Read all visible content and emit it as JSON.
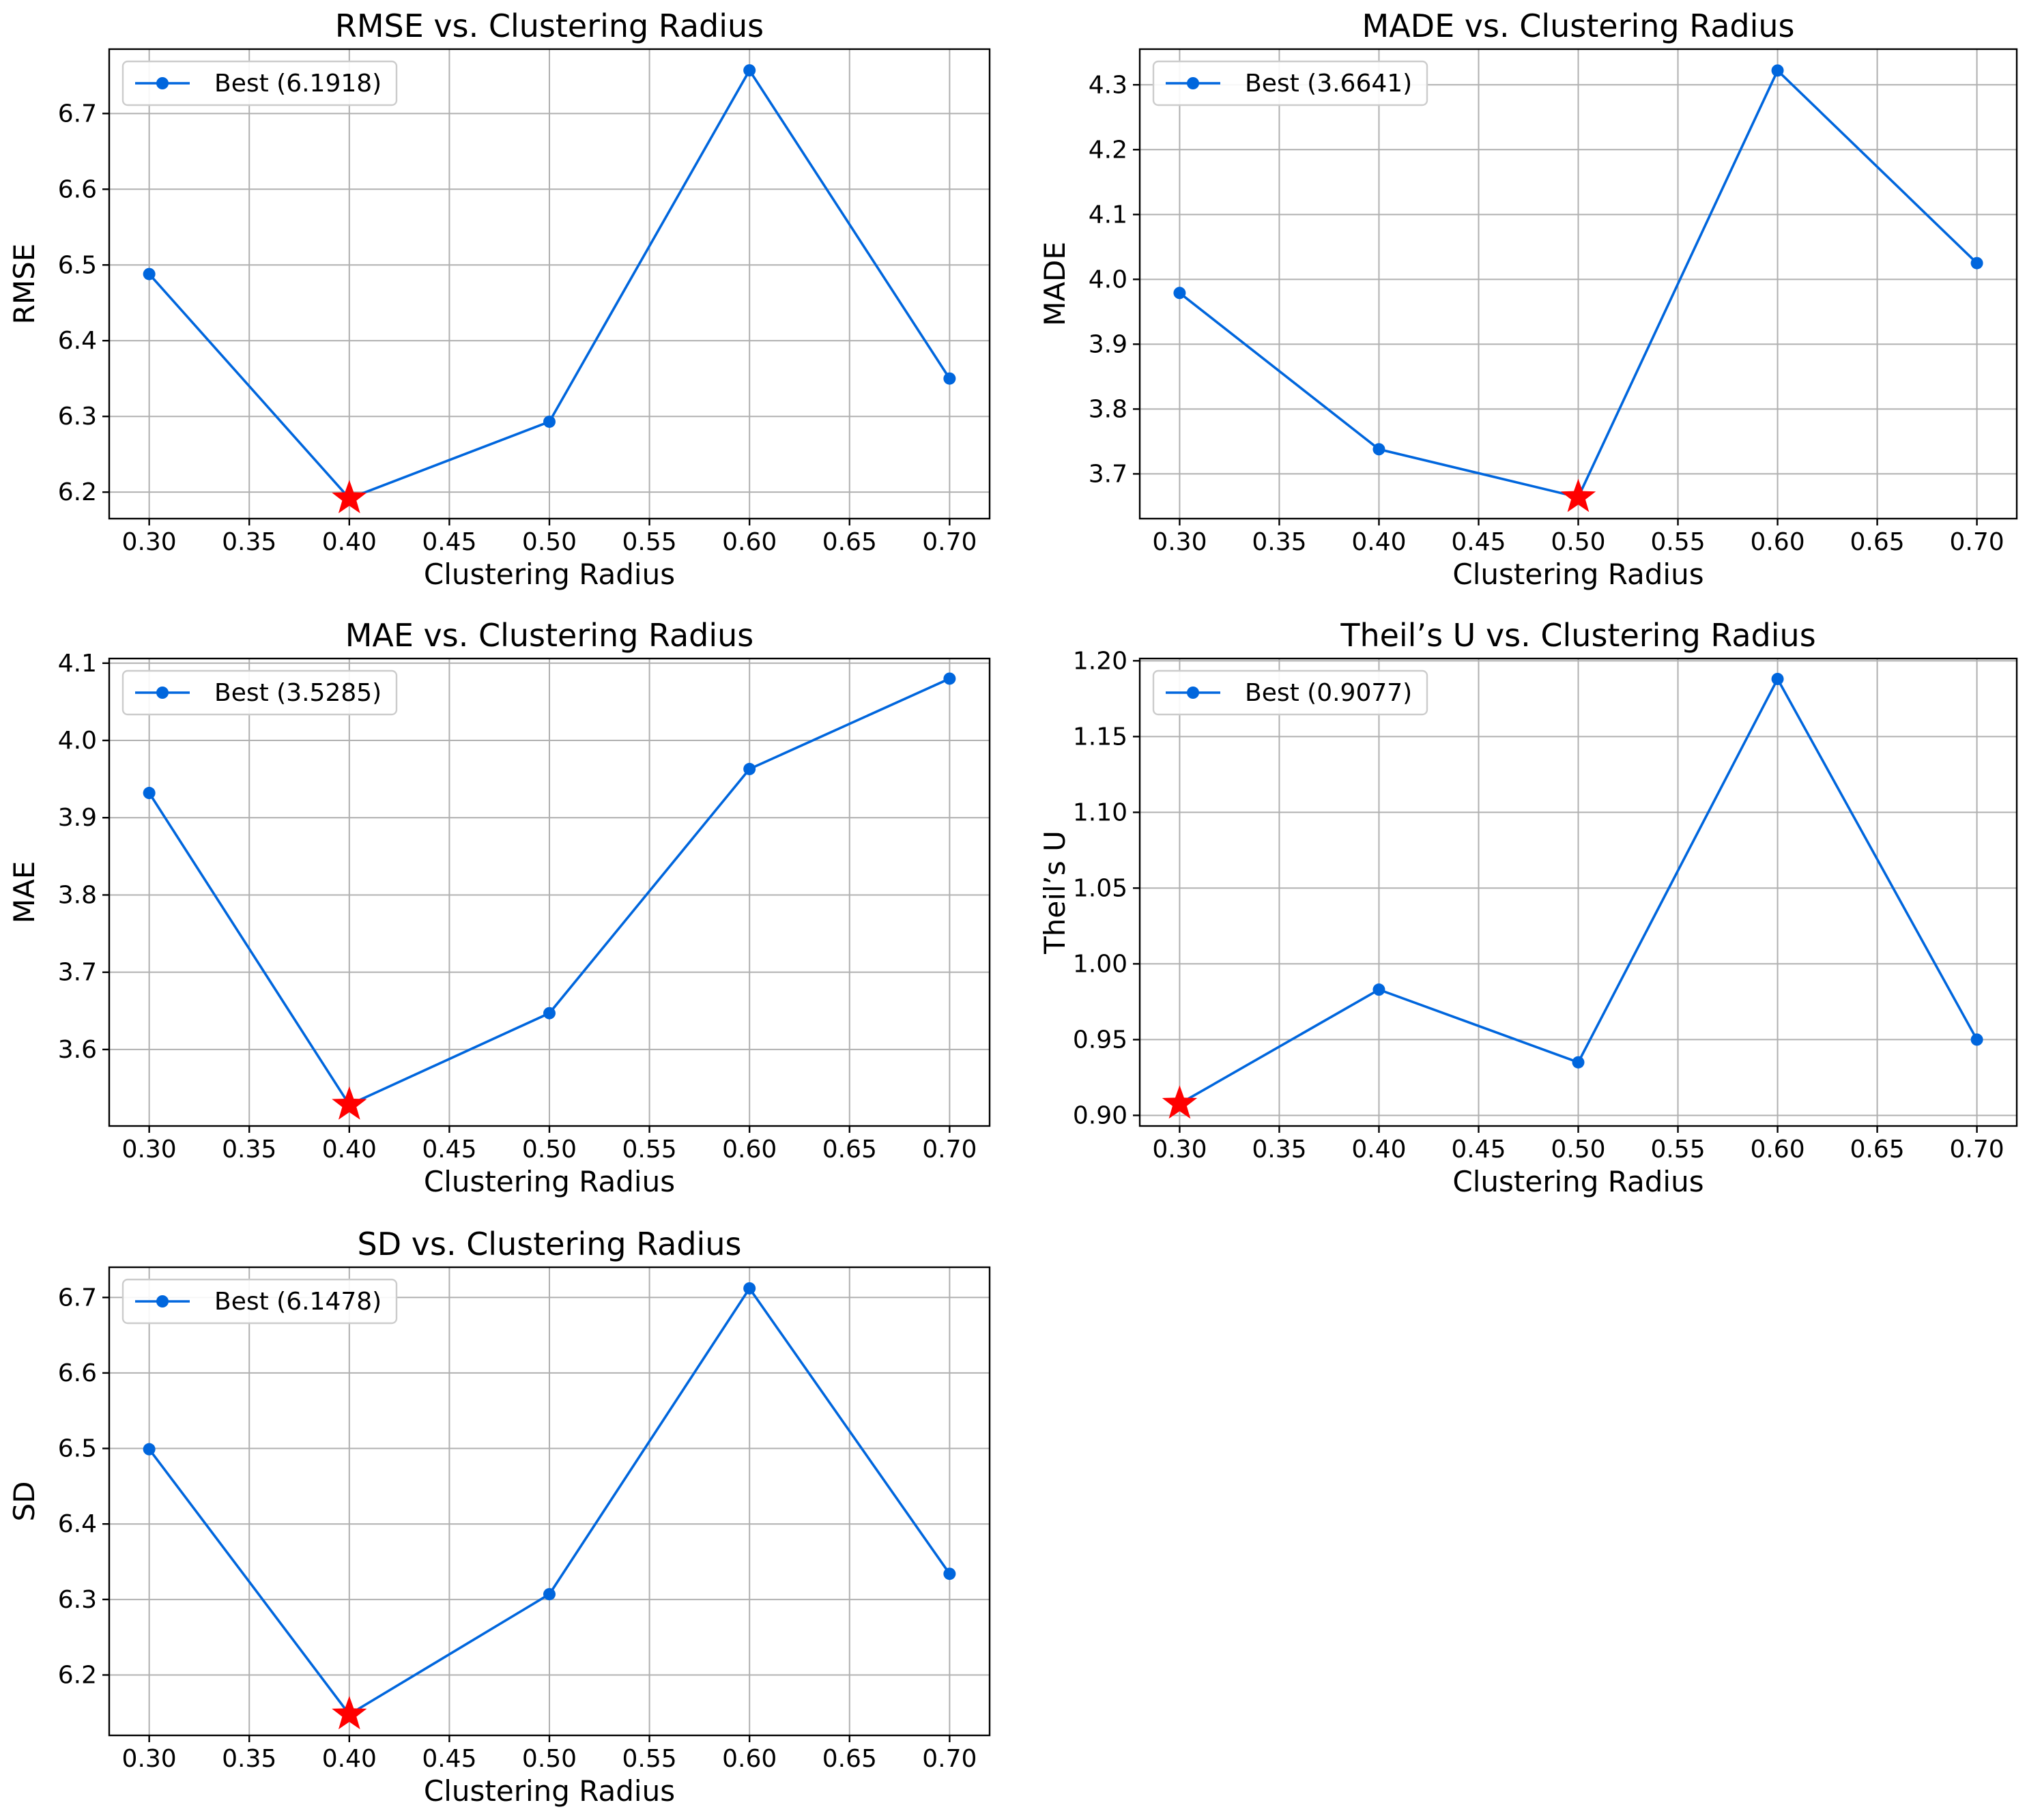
{
  "colors": {
    "series": "#0066dd",
    "best_marker": "#ff0000",
    "grid": "#b0b0b0"
  },
  "chart_data": [
    {
      "type": "line",
      "title": "RMSE vs. Clustering Radius",
      "xlabel": "Clustering Radius",
      "ylabel": "RMSE",
      "x": [
        0.3,
        0.4,
        0.5,
        0.6,
        0.7
      ],
      "xlim": [
        0.28,
        0.72
      ],
      "ylim": [
        6.165,
        6.785
      ],
      "x_ticks": [
        "0.30",
        "0.35",
        "0.40",
        "0.45",
        "0.50",
        "0.55",
        "0.60",
        "0.65",
        "0.70"
      ],
      "y_ticks": [
        "6.2",
        "6.3",
        "6.4",
        "6.5",
        "6.6",
        "6.7"
      ],
      "grid": true,
      "legend_position": "top-left",
      "series": [
        {
          "name": "Best (6.1918)",
          "values": [
            6.488,
            6.1918,
            6.293,
            6.757,
            6.35
          ]
        }
      ],
      "best": {
        "x": 0.4,
        "y": 6.1918,
        "marker": "star"
      }
    },
    {
      "type": "line",
      "title": "MADE vs. Clustering Radius",
      "xlabel": "Clustering Radius",
      "ylabel": "MADE",
      "x": [
        0.3,
        0.4,
        0.5,
        0.6,
        0.7
      ],
      "xlim": [
        0.28,
        0.72
      ],
      "ylim": [
        3.631,
        4.355
      ],
      "x_ticks": [
        "0.30",
        "0.35",
        "0.40",
        "0.45",
        "0.50",
        "0.55",
        "0.60",
        "0.65",
        "0.70"
      ],
      "y_ticks": [
        "3.7",
        "3.8",
        "3.9",
        "4.0",
        "4.1",
        "4.2",
        "4.3"
      ],
      "grid": true,
      "legend_position": "top-left",
      "series": [
        {
          "name": "Best (3.6641)",
          "values": [
            3.979,
            3.738,
            3.6641,
            4.322,
            4.025
          ]
        }
      ],
      "best": {
        "x": 0.5,
        "y": 3.6641,
        "marker": "star"
      }
    },
    {
      "type": "line",
      "title": "MAE vs. Clustering Radius",
      "xlabel": "Clustering Radius",
      "ylabel": "MAE",
      "x": [
        0.3,
        0.4,
        0.5,
        0.6,
        0.7
      ],
      "xlim": [
        0.28,
        0.72
      ],
      "ylim": [
        3.501,
        4.106
      ],
      "x_ticks": [
        "0.30",
        "0.35",
        "0.40",
        "0.45",
        "0.50",
        "0.55",
        "0.60",
        "0.65",
        "0.70"
      ],
      "y_ticks": [
        "3.6",
        "3.7",
        "3.8",
        "3.9",
        "4.0",
        "4.1"
      ],
      "grid": true,
      "legend_position": "top-left",
      "series": [
        {
          "name": "Best (3.5285)",
          "values": [
            3.932,
            3.5285,
            3.647,
            3.963,
            4.08
          ]
        }
      ],
      "best": {
        "x": 0.4,
        "y": 3.5285,
        "marker": "star"
      }
    },
    {
      "type": "line",
      "title": "Theil’s U vs. Clustering Radius",
      "xlabel": "Clustering Radius",
      "ylabel": "Theil’s U",
      "x": [
        0.3,
        0.4,
        0.5,
        0.6,
        0.7
      ],
      "xlim": [
        0.28,
        0.72
      ],
      "ylim": [
        0.893,
        1.2015
      ],
      "x_ticks": [
        "0.30",
        "0.35",
        "0.40",
        "0.45",
        "0.50",
        "0.55",
        "0.60",
        "0.65",
        "0.70"
      ],
      "y_ticks": [
        "0.90",
        "0.95",
        "1.00",
        "1.05",
        "1.10",
        "1.15",
        "1.20"
      ],
      "grid": true,
      "legend_position": "top-left",
      "series": [
        {
          "name": "Best (0.9077)",
          "values": [
            0.9077,
            0.983,
            0.935,
            1.188,
            0.95
          ]
        }
      ],
      "best": {
        "x": 0.3,
        "y": 0.9077,
        "marker": "star"
      }
    },
    {
      "type": "line",
      "title": "SD vs. Clustering Radius",
      "xlabel": "Clustering Radius",
      "ylabel": "SD",
      "x": [
        0.3,
        0.4,
        0.5,
        0.6,
        0.7
      ],
      "xlim": [
        0.28,
        0.72
      ],
      "ylim": [
        6.12,
        6.74
      ],
      "x_ticks": [
        "0.30",
        "0.35",
        "0.40",
        "0.45",
        "0.50",
        "0.55",
        "0.60",
        "0.65",
        "0.70"
      ],
      "y_ticks": [
        "6.2",
        "6.3",
        "6.4",
        "6.5",
        "6.6",
        "6.7"
      ],
      "grid": true,
      "legend_position": "top-left",
      "series": [
        {
          "name": "Best (6.1478)",
          "values": [
            6.499,
            6.1478,
            6.307,
            6.712,
            6.334
          ]
        }
      ],
      "best": {
        "x": 0.4,
        "y": 6.1478,
        "marker": "star"
      }
    }
  ]
}
